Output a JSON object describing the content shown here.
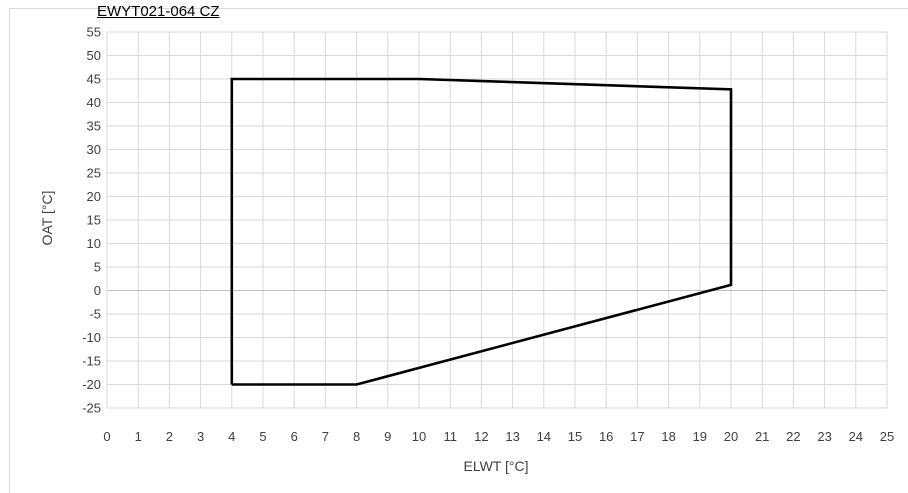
{
  "header": {
    "title": "EWYT021-064 CZ"
  },
  "chart_data": {
    "type": "line",
    "title": "EWYT021-064 CZ",
    "xlabel": "ELWT [°C]",
    "ylabel": "OAT [°C]",
    "xlim": [
      0,
      25
    ],
    "ylim": [
      -25,
      55
    ],
    "x_ticks": [
      0,
      1,
      2,
      3,
      4,
      5,
      6,
      7,
      8,
      9,
      10,
      11,
      12,
      13,
      14,
      15,
      16,
      17,
      18,
      19,
      20,
      21,
      22,
      23,
      24,
      25
    ],
    "y_ticks": [
      55,
      50,
      45,
      40,
      35,
      30,
      25,
      20,
      15,
      10,
      5,
      0,
      -5,
      -10,
      -15,
      -20,
      -25
    ],
    "grid": true,
    "series": [
      {
        "color": "#000000",
        "points": [
          [
            4,
            -20
          ],
          [
            4,
            45
          ],
          [
            10,
            45
          ],
          [
            20,
            42.8
          ],
          [
            20,
            1.2
          ],
          [
            8,
            -20
          ],
          [
            4,
            -20
          ]
        ]
      }
    ]
  }
}
